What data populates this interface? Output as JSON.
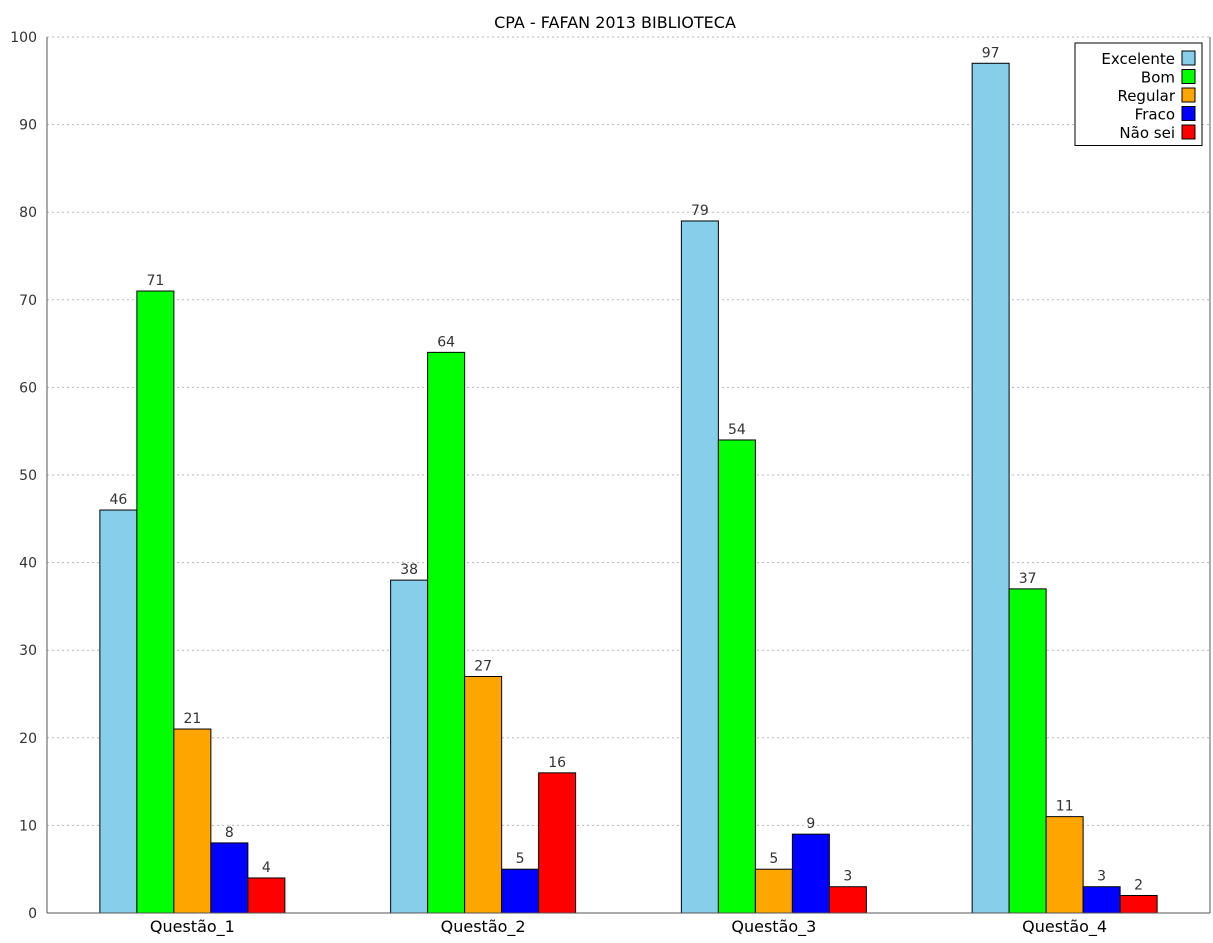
{
  "chart_data": {
    "type": "bar",
    "title": "CPA - FAFAN 2013 BIBLIOTECA",
    "categories": [
      "Questão_1",
      "Questão_2",
      "Questão_3",
      "Questão_4"
    ],
    "series": [
      {
        "name": "Excelente",
        "color": "#87CEEB",
        "values": [
          46,
          38,
          79,
          97
        ]
      },
      {
        "name": "Bom",
        "color": "#00FF00",
        "values": [
          71,
          64,
          54,
          37
        ]
      },
      {
        "name": "Regular",
        "color": "#FFA500",
        "values": [
          21,
          27,
          5,
          11
        ]
      },
      {
        "name": "Fraco",
        "color": "#0000FF",
        "values": [
          8,
          5,
          9,
          3
        ]
      },
      {
        "name": "Não sei",
        "color": "#FF0000",
        "values": [
          4,
          16,
          3,
          2
        ]
      }
    ],
    "y_ticks": [
      0,
      10,
      20,
      30,
      40,
      50,
      60,
      70,
      80,
      90,
      100
    ],
    "ylim": [
      0,
      100
    ],
    "grid": true,
    "legend_position": "top-right",
    "data_labels": true
  }
}
